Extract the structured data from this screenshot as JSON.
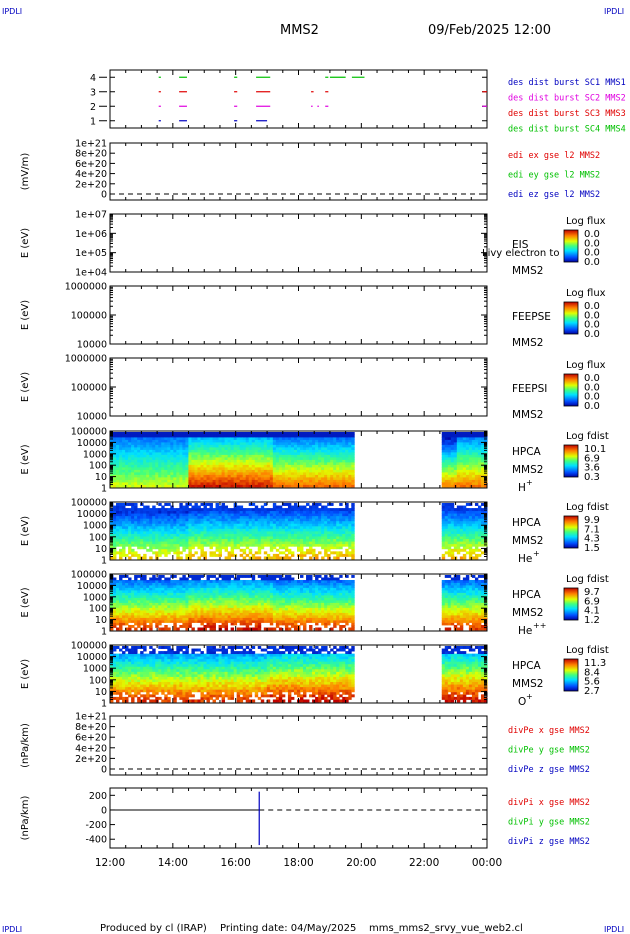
{
  "header": {
    "corner_tl": "IPDLI",
    "corner_tr": "IPDLI",
    "corner_bl": "IPDLI",
    "corner_br": "IPDLI",
    "spacecraft": "MMS2",
    "datetime": "09/Feb/2025 12:00"
  },
  "footer": {
    "produced_by": "Produced by cl (IRAP)",
    "printing_date": "Printing date: 04/May/2025",
    "script_name": "mms_mms2_srvy_vue_web2.cl"
  },
  "colors": {
    "red": "#e00000",
    "green": "#00c000",
    "blue": "#0000c0",
    "magenta": "#e000e0"
  },
  "chart_data": [
    {
      "type": "line",
      "panel": "burst",
      "ylim": [
        0.5,
        4.5
      ],
      "yticks": [
        "1",
        "2",
        "3",
        "4"
      ],
      "legend": [
        {
          "label": "des dist burst SC1 MMS1",
          "color": "#0000c0"
        },
        {
          "label": "des dist burst SC2 MMS2",
          "color": "#e000e0"
        },
        {
          "label": "des dist burst SC3 MMS3",
          "color": "#e00000"
        },
        {
          "label": "des dist burst SC4 MMS4",
          "color": "#00c000"
        }
      ],
      "series": [
        {
          "level": 4,
          "color": "#00c000",
          "segments": [
            [
              13.55,
              13.62
            ],
            [
              14.2,
              14.45
            ],
            [
              15.95,
              16.05
            ],
            [
              16.65,
              17.1
            ],
            [
              18.85,
              18.95
            ],
            [
              19.0,
              19.5
            ],
            [
              19.7,
              20.1
            ]
          ]
        },
        {
          "level": 3,
          "color": "#e00000",
          "segments": [
            [
              13.55,
              13.62
            ],
            [
              14.2,
              14.45
            ],
            [
              15.95,
              16.05
            ],
            [
              16.65,
              17.1
            ],
            [
              18.4,
              18.48
            ],
            [
              18.85,
              18.95
            ],
            [
              23.85,
              24.0
            ]
          ]
        },
        {
          "level": 2,
          "color": "#e000e0",
          "segments": [
            [
              13.55,
              13.62
            ],
            [
              14.2,
              14.45
            ],
            [
              15.95,
              16.05
            ],
            [
              16.65,
              17.1
            ],
            [
              18.4,
              18.45
            ],
            [
              18.6,
              18.65
            ],
            [
              18.85,
              18.95
            ],
            [
              23.85,
              24.0
            ]
          ]
        },
        {
          "level": 1,
          "color": "#0000c0",
          "segments": [
            [
              13.55,
              13.62
            ],
            [
              14.2,
              14.45
            ],
            [
              15.95,
              16.05
            ],
            [
              16.65,
              17.0
            ]
          ]
        }
      ]
    },
    {
      "type": "line",
      "panel": "edi",
      "ylabel": "(mV/m)",
      "yticks": [
        "0",
        "2e+20",
        "4e+20",
        "6e+20",
        "8e+20",
        "1e+21"
      ],
      "legend": [
        {
          "label": "edi ex gse l2 MMS2",
          "color": "#e00000"
        },
        {
          "label": "edi ey gse l2 MMS2",
          "color": "#00c000"
        },
        {
          "label": "edi ez gse l2 MMS2",
          "color": "#0000c0"
        }
      ]
    },
    {
      "type": "heatmap",
      "panel": "eis",
      "ylabel": "E (eV)",
      "yticks": [
        "1e+04",
        "1e+05",
        "1e+06",
        "1e+07"
      ],
      "instrument": "EIS",
      "overlay": "Livy electron to",
      "sc": "MMS2",
      "cbar_title": "Log flux",
      "cbar_ticks": [
        "0.0",
        "0.0",
        "0.0",
        "0.0"
      ]
    },
    {
      "type": "heatmap",
      "panel": "feepse",
      "ylabel": "E (eV)",
      "yticks": [
        "10000",
        "100000",
        "1000000"
      ],
      "instrument": "FEEPSE",
      "sc": "MMS2",
      "cbar_title": "Log flux",
      "cbar_ticks": [
        "0.0",
        "0.0",
        "0.0",
        "0.0"
      ]
    },
    {
      "type": "heatmap",
      "panel": "feepsi",
      "ylabel": "E (eV)",
      "yticks": [
        "10000",
        "100000",
        "1000000"
      ],
      "instrument": "FEEPSI",
      "sc": "MMS2",
      "cbar_title": "Log flux",
      "cbar_ticks": [
        "0.0",
        "0.0",
        "0.0",
        "0.0"
      ]
    },
    {
      "type": "heatmap",
      "panel": "hpca_h",
      "ylabel": "E (eV)",
      "yticks": [
        "1",
        "10",
        "100",
        "1000",
        "10000",
        "100000"
      ],
      "instrument": "HPCA",
      "sc": "MMS2",
      "species": "H",
      "charge": "+",
      "cbar_title": "Log fdist",
      "cbar_ticks": [
        "10.1",
        "6.9",
        "3.6",
        "0.3"
      ]
    },
    {
      "type": "heatmap",
      "panel": "hpca_he",
      "ylabel": "E (eV)",
      "yticks": [
        "1",
        "10",
        "100",
        "1000",
        "10000",
        "100000"
      ],
      "instrument": "HPCA",
      "sc": "MMS2",
      "species": "He",
      "charge": "+",
      "cbar_title": "Log fdist",
      "cbar_ticks": [
        "9.9",
        "7.1",
        "4.3",
        "1.5"
      ]
    },
    {
      "type": "heatmap",
      "panel": "hpca_hepp",
      "ylabel": "E (eV)",
      "yticks": [
        "1",
        "10",
        "100",
        "1000",
        "10000",
        "100000"
      ],
      "instrument": "HPCA",
      "sc": "MMS2",
      "species": "He",
      "charge": "++",
      "cbar_title": "Log fdist",
      "cbar_ticks": [
        "9.7",
        "6.9",
        "4.1",
        "1.2"
      ]
    },
    {
      "type": "heatmap",
      "panel": "hpca_o",
      "ylabel": "E (eV)",
      "yticks": [
        "1",
        "10",
        "100",
        "1000",
        "10000",
        "100000"
      ],
      "instrument": "HPCA",
      "sc": "MMS2",
      "species": "O",
      "charge": "+",
      "cbar_title": "Log fdist",
      "cbar_ticks": [
        "11.3",
        "8.4",
        "5.6",
        "2.7"
      ]
    },
    {
      "type": "line",
      "panel": "divpe",
      "ylabel": "(nPa/km)",
      "yticks": [
        "0",
        "2e+20",
        "4e+20",
        "6e+20",
        "8e+20",
        "1e+21"
      ],
      "legend": [
        {
          "label": "divPe x gse MMS2",
          "color": "#e00000"
        },
        {
          "label": "divPe y gse MMS2",
          "color": "#00c000"
        },
        {
          "label": "divPe z gse MMS2",
          "color": "#0000c0"
        }
      ]
    },
    {
      "type": "line",
      "panel": "divpi",
      "ylabel": "(nPa/km)",
      "ylim": [
        -520,
        300
      ],
      "yticks": [
        "-400",
        "-200",
        "0",
        "200"
      ],
      "legend": [
        {
          "label": "divPi x gse MMS2",
          "color": "#e00000"
        },
        {
          "label": "divPi y gse MMS2",
          "color": "#00c000"
        },
        {
          "label": "divPi z gse MMS2",
          "color": "#0000c0"
        }
      ],
      "spike": {
        "t": 16.75,
        "min": -480,
        "max": 250,
        "color": "#0000c0"
      }
    }
  ],
  "time_axis": {
    "start": 12,
    "end": 24,
    "ticks": [
      "12:00",
      "14:00",
      "16:00",
      "18:00",
      "20:00",
      "22:00",
      "00:00"
    ]
  }
}
